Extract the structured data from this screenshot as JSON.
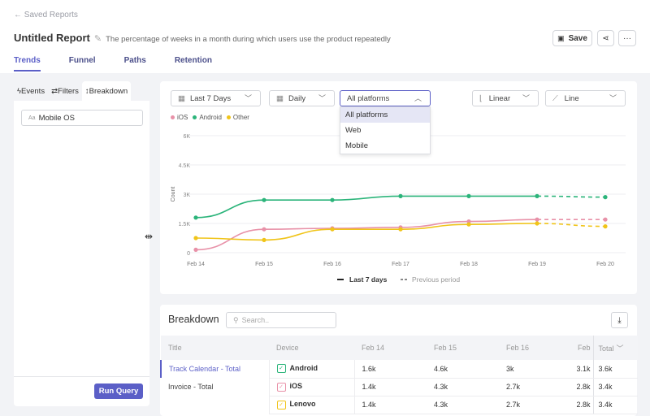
{
  "header": {
    "back_label": "Saved Reports",
    "title": "Untitled Report",
    "description": "The percentage of weeks in a month during which users use the product repeatedly",
    "save_label": "Save",
    "share_icon": "share-icon",
    "more_icon": "more-icon"
  },
  "tabs": [
    {
      "label": "Trends",
      "active": true
    },
    {
      "label": "Funnel"
    },
    {
      "label": "Paths"
    },
    {
      "label": "Retention"
    }
  ],
  "left_panel": {
    "tabs": [
      "Events",
      "Filters",
      "Breakdown"
    ],
    "active_tab": "Breakdown",
    "breakdown_item": "Mobile OS",
    "breakdown_prefix": "Aa",
    "run_label": "Run Query"
  },
  "controls": {
    "date_range": "Last 7 Days",
    "interval": "Daily",
    "platform": "All platforms",
    "platform_options": [
      "All platforms",
      "Web",
      "Mobile"
    ],
    "scale": "Linear",
    "chart_type": "Line"
  },
  "chart_data": {
    "type": "line",
    "ylabel": "Count",
    "ylim": [
      0,
      6000
    ],
    "yticks": [
      "0",
      "1.5K",
      "3K",
      "4.5K",
      "6K"
    ],
    "ytick_values": [
      0,
      1500,
      3000,
      4500,
      6000
    ],
    "categories": [
      "Feb 14",
      "Feb 15",
      "Feb 16",
      "Feb 17",
      "Feb 18",
      "Feb 19",
      "Feb 20"
    ],
    "grid": true,
    "legend_placement": "top-left",
    "series": [
      {
        "name": "iOS",
        "color": "#e891a8",
        "values": [
          150,
          1200,
          1250,
          1300,
          1600,
          1700,
          1700
        ]
      },
      {
        "name": "Android",
        "color": "#2bb47a",
        "values": [
          1800,
          2700,
          2700,
          2900,
          2900,
          2900,
          2850
        ]
      },
      {
        "name": "Other",
        "color": "#f0c419",
        "values": [
          750,
          650,
          1200,
          1200,
          1450,
          1500,
          1350
        ]
      }
    ],
    "dashed_from": "Feb 19",
    "period_legend": [
      "Last 7 days",
      "Previous period"
    ]
  },
  "breakdown": {
    "title": "Breakdown",
    "search_placeholder": "Search..",
    "columns": [
      "Title",
      "Device",
      "Feb 14",
      "Feb 15",
      "Feb 16",
      "Feb",
      "Total"
    ],
    "titles": [
      {
        "label": "Track Calendar - Total",
        "active": true
      },
      {
        "label": "Invoice - Total"
      }
    ],
    "rows": [
      {
        "device": "Android",
        "color": "#2bb47a",
        "values": [
          "1.6k",
          "4.6k",
          "3k",
          "3.1k",
          "3.6k"
        ]
      },
      {
        "device": "iOS",
        "color": "#e891a8",
        "values": [
          "1.4k",
          "4.3k",
          "2.7k",
          "2.8k",
          "3.4k"
        ]
      },
      {
        "device": "Lenovo",
        "color": "#f0c419",
        "values": [
          "1.4k",
          "4.3k",
          "2.7k",
          "2.8k",
          "3.4k"
        ]
      }
    ]
  }
}
